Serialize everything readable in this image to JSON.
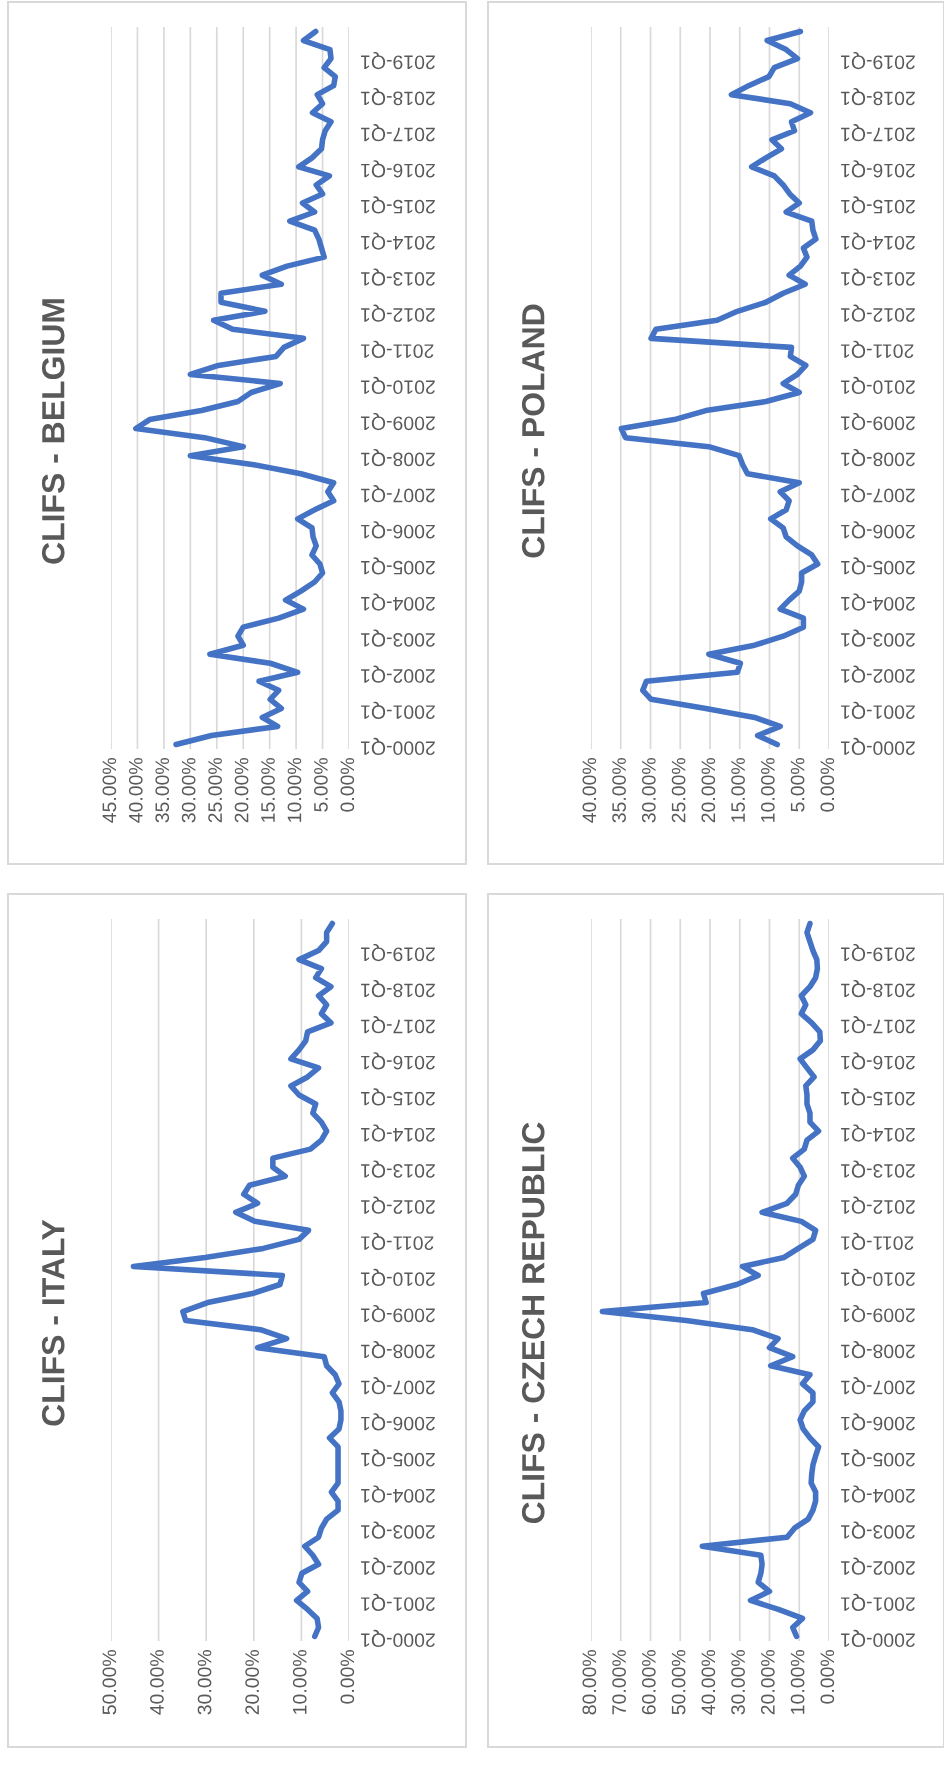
{
  "chart_data": [
    {
      "type": "line",
      "orientation": "horizontal",
      "title": "CLIFS - BELGIUM",
      "categories": [
        null,
        null,
        null,
        "2019-Q1",
        null,
        null,
        null,
        "2018-Q1",
        null,
        null,
        null,
        "2017-Q1",
        null,
        null,
        null,
        "2016-Q1",
        null,
        null,
        null,
        "2015-Q1",
        null,
        null,
        null,
        "2014-Q1",
        null,
        null,
        null,
        "2013-Q1",
        null,
        null,
        null,
        "2012-Q1",
        null,
        null,
        null,
        "2011-Q1",
        null,
        null,
        null,
        "2010-Q1",
        null,
        null,
        null,
        "2009-Q1",
        null,
        null,
        null,
        "2008-Q1",
        null,
        null,
        null,
        "2007-Q1",
        null,
        null,
        null,
        "2006-Q1",
        null,
        null,
        null,
        "2005-Q1",
        null,
        null,
        null,
        "2004-Q1",
        null,
        null,
        null,
        "2003-Q1",
        null,
        null,
        null,
        "2002-Q1",
        null,
        null,
        null,
        "2001-Q1",
        null,
        null,
        null,
        "2000-Q1"
      ],
      "values": [
        6.3,
        8.6,
        3.6,
        3.4,
        4.7,
        2.6,
        2.9,
        6,
        5,
        6.9,
        3.4,
        4.5,
        5,
        5.2,
        7,
        9.5,
        3.7,
        6.2,
        5,
        8.8,
        6.5,
        11.2,
        6.5,
        5.7,
        5.2,
        4.7,
        11.7,
        16.4,
        12.8,
        24.2,
        24.2,
        15.9,
        25.6,
        22,
        8.6,
        12.3,
        13.8,
        24.7,
        30,
        13,
        18.5,
        21,
        27.9,
        37.7,
        40.3,
        27.3,
        20,
        30,
        18,
        9.1,
        2.9,
        4,
        2.9,
        6.5,
        9.7,
        7,
        6.8,
        6.2,
        7,
        5.5,
        5,
        6.5,
        9.1,
        12,
        8.6,
        13.3,
        20,
        21,
        20,
        26.3,
        14.9,
        9.7,
        17,
        13.3,
        14.9,
        12.8,
        16.4,
        13.5,
        26,
        32.7
      ],
      "color": "#4472c4",
      "xlim": [
        45,
        0
      ],
      "xticks": [
        {
          "value": 0,
          "label": "0.00%"
        },
        {
          "value": 5,
          "label": "5.00%"
        },
        {
          "value": 10,
          "label": "10.00%"
        },
        {
          "value": 15,
          "label": "15.00%"
        },
        {
          "value": 20,
          "label": "20.00%"
        },
        {
          "value": 25,
          "label": "25.00%"
        },
        {
          "value": 30,
          "label": "30.00%"
        },
        {
          "value": 35,
          "label": "35.00%"
        },
        {
          "value": 40,
          "label": "40.00%"
        },
        {
          "value": 45,
          "label": "45.00%"
        }
      ],
      "grid": "x"
    },
    {
      "type": "line",
      "orientation": "horizontal",
      "title": "CLIFS - POLAND",
      "categories": [
        null,
        null,
        null,
        "2019-Q1",
        null,
        null,
        null,
        "2018-Q1",
        null,
        null,
        null,
        "2017-Q1",
        null,
        null,
        null,
        "2016-Q1",
        null,
        null,
        null,
        "2015-Q1",
        null,
        null,
        null,
        "2014-Q1",
        null,
        null,
        null,
        "2013-Q1",
        null,
        null,
        null,
        "2012-Q1",
        null,
        null,
        null,
        "2011-Q1",
        null,
        null,
        null,
        "2010-Q1",
        null,
        null,
        null,
        "2009-Q1",
        null,
        null,
        null,
        "2008-Q1",
        null,
        null,
        null,
        "2007-Q1",
        null,
        null,
        null,
        "2006-Q1",
        null,
        null,
        null,
        "2005-Q1",
        null,
        null,
        null,
        "2004-Q1",
        null,
        null,
        null,
        "2003-Q1",
        null,
        null,
        null,
        "2002-Q1",
        null,
        null,
        null,
        "2001-Q1",
        null,
        null,
        null,
        "2000-Q1"
      ],
      "values": [
        4.8,
        10.4,
        7.2,
        5.3,
        9.2,
        10.1,
        13.5,
        16.4,
        6.5,
        3.1,
        6.3,
        5.8,
        9.6,
        8,
        10.6,
        13,
        9.2,
        7.7,
        6.6,
        5,
        7.2,
        2.9,
        2.7,
        2.2,
        4.3,
        3.7,
        4.8,
        6.7,
        4,
        7.7,
        10.6,
        15.4,
        18.8,
        29.1,
        29.9,
        6.3,
        6.5,
        3.9,
        5.3,
        7.7,
        5,
        10.6,
        20.7,
        26,
        34.9,
        34.2,
        20.2,
        15.1,
        14.5,
        13.7,
        5,
        8.2,
        6.7,
        7.2,
        9.8,
        7.7,
        7.2,
        5.3,
        2.9,
        1.9,
        4.6,
        4.6,
        5,
        6.7,
        8.2,
        4.3,
        4.3,
        7.7,
        12.5,
        20.2,
        14.9,
        15.4,
        30.7,
        31.3,
        29.9,
        20.7,
        12.5,
        8.2,
        12,
        8.7
      ],
      "color": "#4472c4",
      "xlim": [
        40,
        0
      ],
      "xticks": [
        {
          "value": 0,
          "label": "0.00%"
        },
        {
          "value": 5,
          "label": "5.00%"
        },
        {
          "value": 10,
          "label": "10.00%"
        },
        {
          "value": 15,
          "label": "15.00%"
        },
        {
          "value": 20,
          "label": "20.00%"
        },
        {
          "value": 25,
          "label": "25.00%"
        },
        {
          "value": 30,
          "label": "30.00%"
        },
        {
          "value": 35,
          "label": "35.00%"
        },
        {
          "value": 40,
          "label": "40.00%"
        }
      ],
      "grid": "x"
    },
    {
      "type": "line",
      "orientation": "horizontal",
      "title": "CLIFS - ITALY",
      "categories": [
        null,
        null,
        null,
        "2019-Q1",
        null,
        null,
        null,
        "2018-Q1",
        null,
        null,
        null,
        "2017-Q1",
        null,
        null,
        null,
        "2016-Q1",
        null,
        null,
        null,
        "2015-Q1",
        null,
        null,
        null,
        "2014-Q1",
        null,
        null,
        null,
        "2013-Q1",
        null,
        null,
        null,
        "2012-Q1",
        null,
        null,
        null,
        "2011-Q1",
        null,
        null,
        null,
        "2010-Q1",
        null,
        null,
        null,
        "2009-Q1",
        null,
        null,
        null,
        "2008-Q1",
        null,
        null,
        null,
        "2007-Q1",
        null,
        null,
        null,
        "2006-Q1",
        null,
        null,
        null,
        "2005-Q1",
        null,
        null,
        null,
        "2004-Q1",
        null,
        null,
        null,
        "2003-Q1",
        null,
        null,
        null,
        "2002-Q1",
        null,
        null,
        null,
        "2001-Q1",
        null,
        null,
        null,
        "2000-Q1"
      ],
      "values": [
        3.5,
        4.7,
        4.7,
        6.4,
        10.5,
        5.8,
        7,
        3.8,
        6.4,
        4.7,
        5.8,
        3.8,
        8.7,
        9.1,
        10.5,
        12.2,
        6.4,
        8.7,
        12.2,
        10.5,
        7,
        7.6,
        5.8,
        4.7,
        5.8,
        8.1,
        16,
        16,
        13.4,
        20.9,
        22.1,
        19.2,
        23.8,
        19.8,
        8.5,
        10.5,
        18,
        30.2,
        45.3,
        14,
        14.5,
        20.3,
        29.7,
        34.9,
        34.3,
        18.6,
        13.1,
        19.2,
        5.2,
        4.7,
        2.9,
        2.1,
        3.5,
        2.1,
        1.7,
        1.7,
        2.1,
        4.1,
        2.3,
        2.3,
        2.3,
        2.3,
        2.3,
        3.7,
        2.3,
        2.3,
        4.7,
        5.8,
        6.4,
        9.3,
        7.6,
        6.4,
        9.9,
        10.5,
        8.7,
        11,
        8.7,
        6.7,
        6.4,
        7.2
      ],
      "color": "#4472c4",
      "xlim": [
        50,
        0
      ],
      "xticks": [
        {
          "value": 0,
          "label": "0.00%"
        },
        {
          "value": 10,
          "label": "10.00%"
        },
        {
          "value": 20,
          "label": "20.00%"
        },
        {
          "value": 30,
          "label": "30.00%"
        },
        {
          "value": 40,
          "label": "40.00%"
        },
        {
          "value": 50,
          "label": "50.00%"
        }
      ],
      "grid": "x"
    },
    {
      "type": "line",
      "orientation": "horizontal",
      "title": "CLIFS - CZECH REPUBLIC",
      "categories": [
        null,
        null,
        null,
        "2019-Q1",
        null,
        null,
        null,
        "2018-Q1",
        null,
        null,
        null,
        "2017-Q1",
        null,
        null,
        null,
        "2016-Q1",
        null,
        null,
        null,
        "2015-Q1",
        null,
        null,
        null,
        "2014-Q1",
        null,
        null,
        null,
        "2013-Q1",
        null,
        null,
        null,
        "2012-Q1",
        null,
        null,
        null,
        "2011-Q1",
        null,
        null,
        null,
        "2010-Q1",
        null,
        null,
        null,
        "2009-Q1",
        null,
        null,
        null,
        "2008-Q1",
        null,
        null,
        null,
        "2007-Q1",
        null,
        null,
        null,
        "2006-Q1",
        null,
        null,
        null,
        "2005-Q1",
        null,
        null,
        null,
        "2004-Q1",
        null,
        null,
        null,
        "2003-Q1",
        null,
        null,
        null,
        "2002-Q1",
        null,
        null,
        null,
        "2001-Q1",
        null,
        null,
        null,
        "2000-Q1"
      ],
      "values": [
        6.4,
        7.4,
        6.4,
        5.4,
        4.1,
        3.9,
        4.5,
        6.4,
        9.3,
        7.8,
        9.3,
        5.8,
        3.1,
        2.9,
        5.4,
        9.7,
        7.4,
        5,
        7.8,
        7.4,
        7.4,
        6.4,
        6.4,
        3.5,
        7.4,
        8.3,
        12.2,
        9.7,
        8.3,
        10.3,
        11.2,
        14.1,
        22.5,
        9.3,
        4.5,
        5.4,
        10.3,
        15.1,
        29.1,
        23.8,
        31,
        42.2,
        41.3,
        76.2,
        48,
        25.8,
        17.1,
        20,
        12.2,
        19.6,
        6.4,
        8.9,
        5.4,
        5.4,
        8.3,
        9.7,
        8.7,
        6.4,
        3.5,
        4.5,
        5.4,
        5.8,
        6,
        4.5,
        4.5,
        5.4,
        7,
        11.6,
        14.1,
        42.6,
        22.9,
        22.5,
        22.9,
        23.8,
        20,
        26.4,
        17,
        8.9,
        12.2,
        10.9
      ],
      "color": "#4472c4",
      "xlim": [
        80,
        0
      ],
      "xticks": [
        {
          "value": 0,
          "label": "0.00%"
        },
        {
          "value": 10,
          "label": "10.00%"
        },
        {
          "value": 20,
          "label": "20.00%"
        },
        {
          "value": 30,
          "label": "30.00%"
        },
        {
          "value": 40,
          "label": "40.00%"
        },
        {
          "value": 50,
          "label": "50.00%"
        },
        {
          "value": 60,
          "label": "60.00%"
        },
        {
          "value": 70,
          "label": "70.00%"
        },
        {
          "value": 80,
          "label": "80.00%"
        }
      ],
      "grid": "x"
    }
  ]
}
